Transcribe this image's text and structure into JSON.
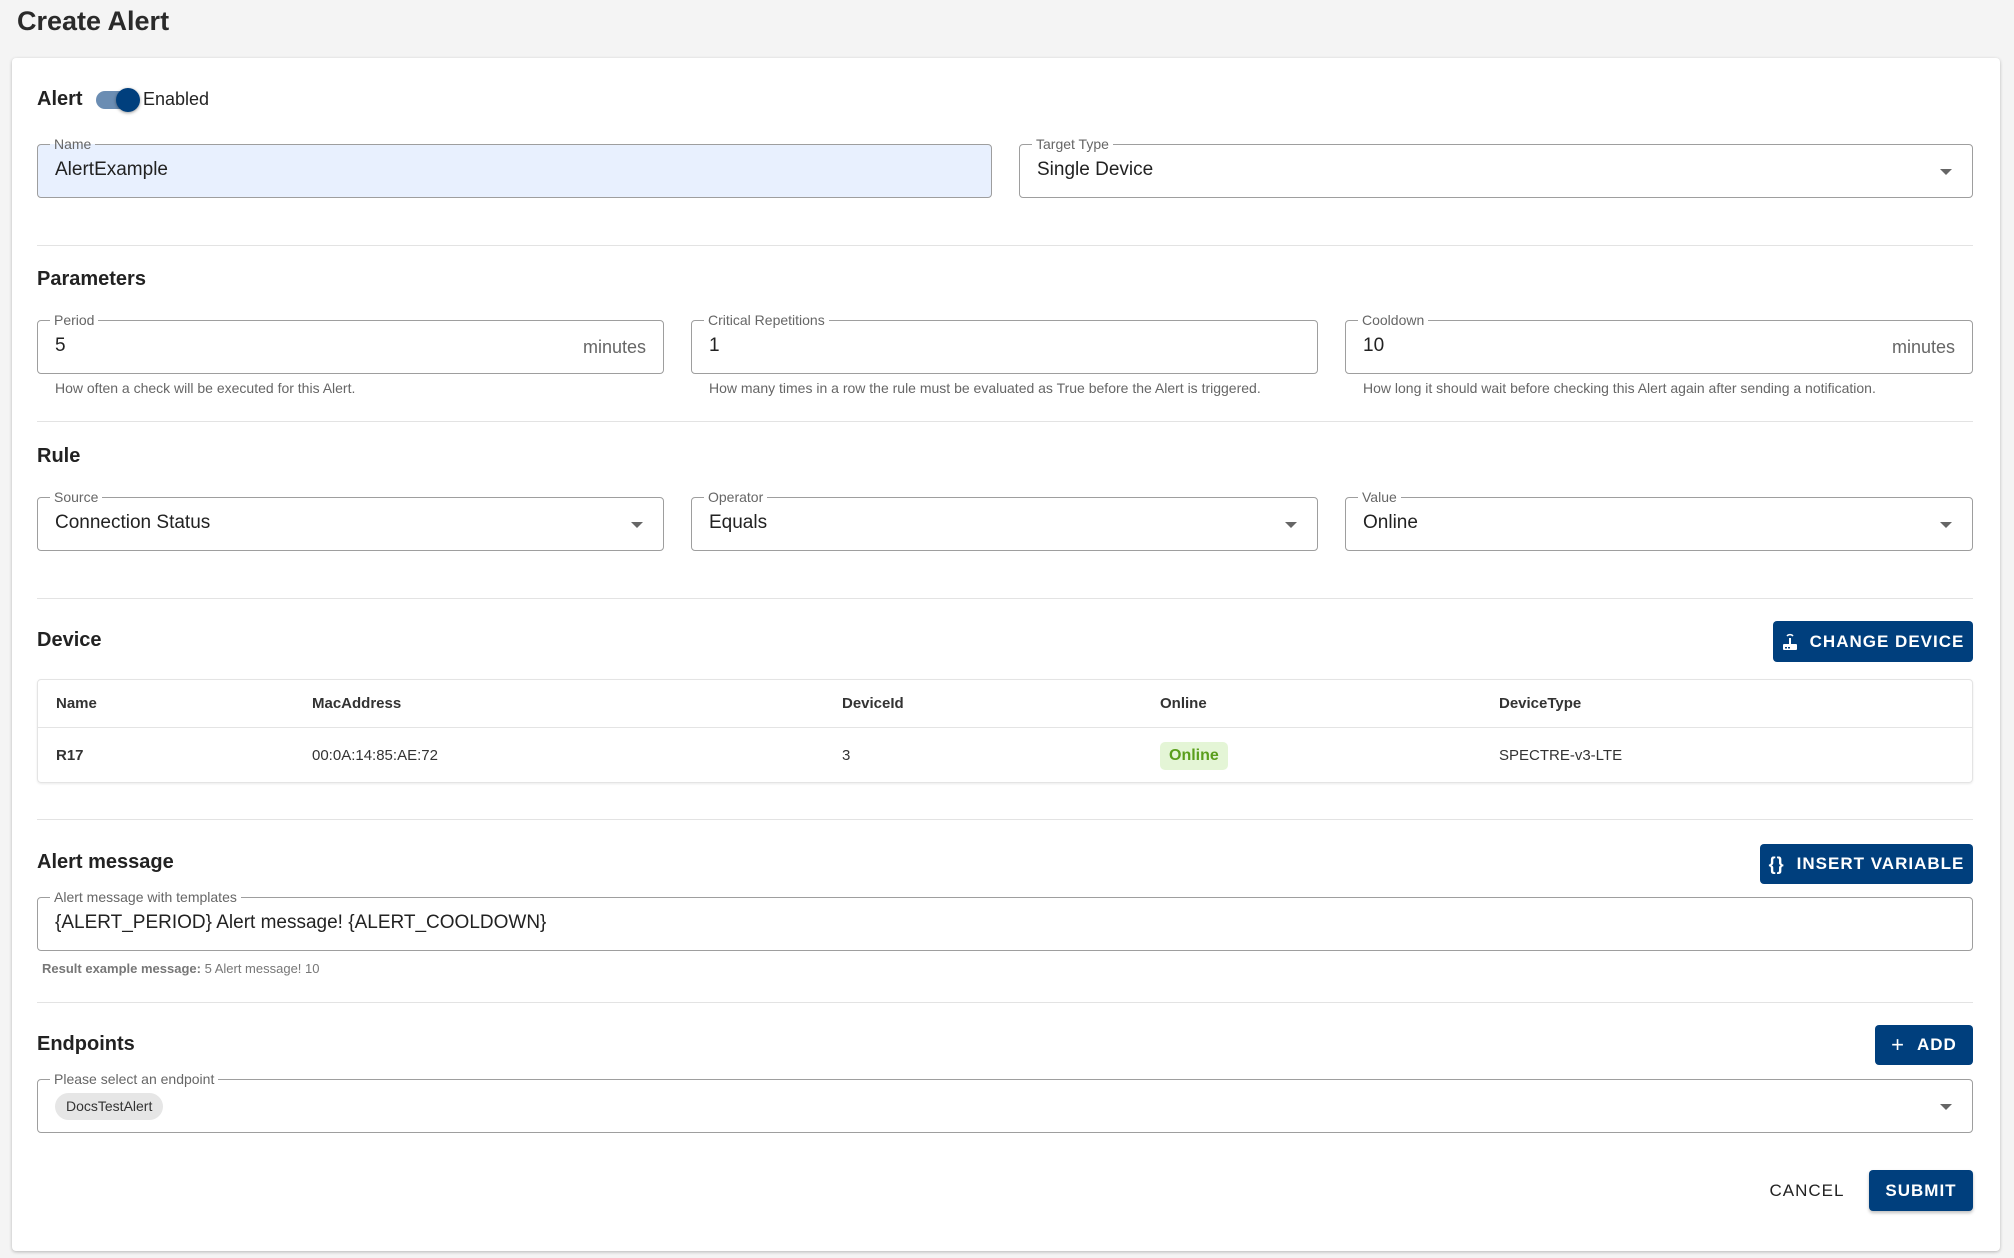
{
  "page": {
    "title": "Create Alert"
  },
  "alert": {
    "heading": "Alert",
    "toggle_label": "Enabled",
    "enabled": true,
    "name": {
      "label": "Name",
      "value": "AlertExample"
    },
    "target_type": {
      "label": "Target Type",
      "value": "Single Device"
    }
  },
  "parameters": {
    "heading": "Parameters",
    "period": {
      "label": "Period",
      "value": "5",
      "unit": "minutes",
      "helper": "How often a check will be executed for this Alert."
    },
    "critical_repetitions": {
      "label": "Critical Repetitions",
      "value": "1",
      "helper": "How many times in a row the rule must be evaluated as True before the Alert is triggered."
    },
    "cooldown": {
      "label": "Cooldown",
      "value": "10",
      "unit": "minutes",
      "helper": "How long it should wait before checking this Alert again after sending a notification."
    }
  },
  "rule": {
    "heading": "Rule",
    "source": {
      "label": "Source",
      "value": "Connection Status"
    },
    "operator": {
      "label": "Operator",
      "value": "Equals"
    },
    "value": {
      "label": "Value",
      "value": "Online"
    }
  },
  "device": {
    "heading": "Device",
    "change_button": "CHANGE DEVICE",
    "columns": [
      "Name",
      "MacAddress",
      "DeviceId",
      "Online",
      "DeviceType"
    ],
    "rows": [
      {
        "name": "R17",
        "mac": "00:0A:14:85:AE:72",
        "device_id": "3",
        "online": "Online",
        "device_type": "SPECTRE-v3-LTE"
      }
    ]
  },
  "message": {
    "heading": "Alert message",
    "insert_button": "INSERT VARIABLE",
    "field_label": "Alert message with templates",
    "value": "{ALERT_PERIOD} Alert message! {ALERT_COOLDOWN}",
    "result_label": "Result example message:",
    "result_value": "5 Alert message! 10"
  },
  "endpoints": {
    "heading": "Endpoints",
    "add_button": "ADD",
    "field_label": "Please select an endpoint",
    "selected": [
      "DocsTestAlert"
    ]
  },
  "actions": {
    "cancel": "CANCEL",
    "submit": "SUBMIT"
  },
  "colors": {
    "primary": "#003f7d",
    "online_bg": "#e4f5d6",
    "online_text": "#5a9e1c",
    "name_field_bg": "#e8f0fe"
  }
}
